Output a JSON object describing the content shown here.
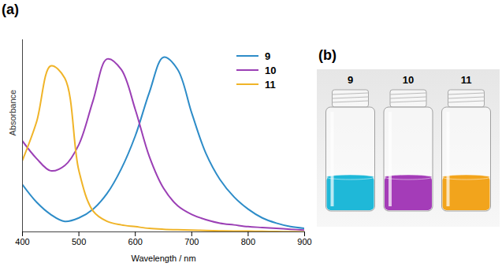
{
  "chart_data": {
    "type": "line",
    "panel_label": "(a)",
    "x_label": "Wavelength / nm",
    "y_label": "Absorbance",
    "x": [
      400,
      425,
      450,
      475,
      500,
      525,
      550,
      575,
      600,
      625,
      650,
      675,
      700,
      725,
      750,
      775,
      800,
      825,
      850,
      875,
      900
    ],
    "series": [
      {
        "name": "9",
        "color": "#2d8cc8",
        "values": [
          0.27,
          0.17,
          0.1,
          0.06,
          0.08,
          0.13,
          0.22,
          0.36,
          0.55,
          0.8,
          1.0,
          0.93,
          0.68,
          0.45,
          0.3,
          0.2,
          0.13,
          0.08,
          0.05,
          0.03,
          0.02
        ]
      },
      {
        "name": "10",
        "color": "#9b3fb5",
        "values": [
          0.52,
          0.42,
          0.35,
          0.38,
          0.5,
          0.75,
          0.99,
          0.93,
          0.7,
          0.43,
          0.25,
          0.15,
          0.1,
          0.07,
          0.05,
          0.04,
          0.03,
          0.025,
          0.02,
          0.015,
          0.01
        ]
      },
      {
        "name": "11",
        "color": "#f0b428",
        "values": [
          0.41,
          0.63,
          0.95,
          0.88,
          0.35,
          0.12,
          0.06,
          0.04,
          0.03,
          0.02,
          0.015,
          0.012,
          0.01,
          0.008,
          0.006,
          0.005,
          0.004,
          0.003,
          0.002,
          0.001,
          0
        ]
      }
    ],
    "xlim": [
      400,
      900
    ],
    "xticks": [
      400,
      500,
      600,
      700,
      800,
      900
    ],
    "ylim": [
      0,
      1.1
    ],
    "tick_labels": "x",
    "legend": "top-right",
    "grid": false
  },
  "photo": {
    "panel_label": "(b)",
    "vials": [
      {
        "label": "9",
        "color": "#1fb8d8"
      },
      {
        "label": "10",
        "color": "#a43cb8"
      },
      {
        "label": "11",
        "color": "#f2a41c"
      }
    ]
  }
}
